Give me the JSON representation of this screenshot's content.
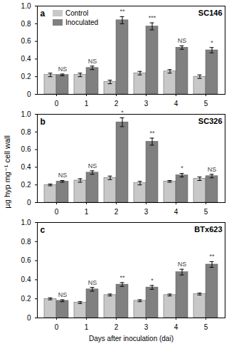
{
  "y_label": "µg hyp mg⁻¹ cell wall",
  "chart_data": [
    {
      "type": "bar",
      "panel": "a",
      "title": "SC146",
      "categories": [
        "0",
        "1",
        "2",
        "3",
        "4",
        "5"
      ],
      "series": [
        {
          "name": "Control",
          "color": "#c8c8c8",
          "values": [
            0.22,
            0.22,
            0.14,
            0.24,
            0.26,
            0.2
          ],
          "errors": [
            0.02,
            0.02,
            0.02,
            0.02,
            0.02,
            0.02
          ]
        },
        {
          "name": "Inoculated",
          "color": "#808080",
          "values": [
            0.22,
            0.3,
            0.84,
            0.77,
            0.53,
            0.5
          ],
          "errors": [
            0.01,
            0.02,
            0.04,
            0.04,
            0.02,
            0.03
          ]
        }
      ],
      "significance": [
        "NS",
        "NS",
        "**",
        "***",
        "NS",
        "*"
      ],
      "ylim": [
        0,
        1
      ],
      "yticks": [
        0,
        0.2,
        0.4,
        0.6,
        0.8,
        {
          "value": 1,
          "label": "1.0"
        }
      ],
      "legend": "top-left"
    },
    {
      "type": "bar",
      "panel": "b",
      "title": "SC326",
      "categories": [
        "0",
        "1",
        "2",
        "3",
        "4",
        "5"
      ],
      "series": [
        {
          "name": "Control",
          "color": "#c8c8c8",
          "values": [
            0.2,
            0.25,
            0.28,
            0.22,
            0.24,
            0.27
          ],
          "errors": [
            0.01,
            0.02,
            0.02,
            0.02,
            0.01,
            0.02
          ]
        },
        {
          "name": "Inoculated",
          "color": "#808080",
          "values": [
            0.24,
            0.34,
            0.91,
            0.69,
            0.31,
            0.3
          ],
          "errors": [
            0.01,
            0.02,
            0.05,
            0.04,
            0.02,
            0.02
          ]
        }
      ],
      "significance": [
        "NS",
        "NS",
        "*",
        "**",
        "*",
        "NS"
      ],
      "ylim": [
        0,
        1
      ],
      "yticks": [
        0,
        0.2,
        0.4,
        0.6,
        0.8,
        {
          "value": 1,
          "label": "1.0"
        }
      ]
    },
    {
      "type": "bar",
      "panel": "c",
      "title": "BTx623",
      "x_label": "Days after inoculation (dai)",
      "categories": [
        "0",
        "1",
        "2",
        "3",
        "4",
        "5"
      ],
      "series": [
        {
          "name": "Control",
          "color": "#c8c8c8",
          "values": [
            0.2,
            0.16,
            0.24,
            0.18,
            0.24,
            0.25
          ],
          "errors": [
            0.01,
            0.01,
            0.01,
            0.01,
            0.01,
            0.01
          ]
        },
        {
          "name": "Inoculated",
          "color": "#808080",
          "values": [
            0.18,
            0.3,
            0.35,
            0.32,
            0.48,
            0.56
          ],
          "errors": [
            0.01,
            0.02,
            0.02,
            0.02,
            0.03,
            0.03
          ]
        }
      ],
      "significance": [
        "NS",
        "NS",
        "**",
        "*",
        "NS",
        "**"
      ],
      "ylim": [
        0,
        1
      ],
      "yticks": [
        0,
        0.2,
        0.4,
        0.6,
        0.8,
        {
          "value": 1,
          "label": "1.0"
        }
      ]
    }
  ]
}
